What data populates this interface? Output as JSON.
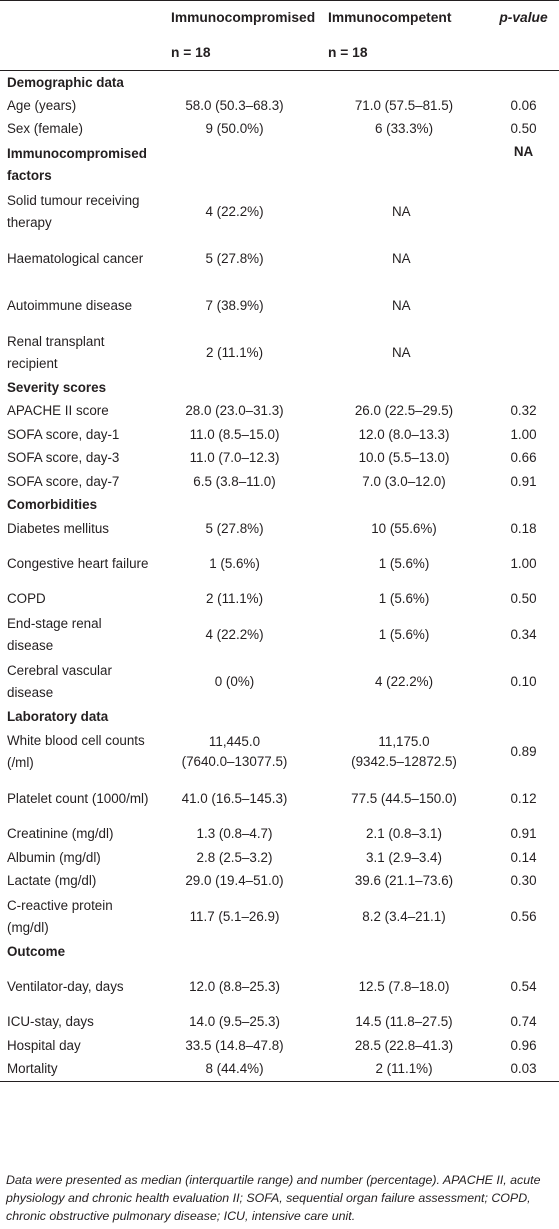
{
  "header": {
    "group1": "Immunocompromised",
    "group1_n": "n = 18",
    "group2": "Immunocompetent",
    "group2_n": "n = 18",
    "pvalue": "p-value"
  },
  "rows": [
    {
      "type": "section",
      "label": "Demographic data"
    },
    {
      "label": "Age (years)",
      "v1": "58.0 (50.3–68.3)",
      "v2": "71.0 (57.5–81.5)",
      "p": "0.06"
    },
    {
      "label": "Sex (female)",
      "v1": "9 (50.0%)",
      "v2": "6 (33.3%)",
      "p": "0.50"
    },
    {
      "type": "section2",
      "label": "Immunocompromised factors",
      "p": "NA"
    },
    {
      "label": "Solid tumour receiving therapy",
      "v1": "4 (22.2%)",
      "v2": "NA",
      "p": ""
    },
    {
      "label": "Haematological cancer",
      "v1": "5 (27.8%)",
      "v2": "NA",
      "p": ""
    },
    {
      "label": "Autoimmune disease",
      "v1": "7 (38.9%)",
      "v2": "NA",
      "p": ""
    },
    {
      "label": "Renal transplant recipient",
      "v1": "2 (11.1%)",
      "v2": "NA",
      "p": ""
    },
    {
      "type": "section",
      "label": "Severity scores"
    },
    {
      "label": "APACHE II score",
      "v1": "28.0 (23.0–31.3)",
      "v2": "26.0 (22.5–29.5)",
      "p": "0.32"
    },
    {
      "label": "SOFA score, day-1",
      "v1": "11.0 (8.5–15.0)",
      "v2": "12.0 (8.0–13.3)",
      "p": "1.00"
    },
    {
      "label": "SOFA score, day-3",
      "v1": "11.0 (7.0–12.3)",
      "v2": "10.0 (5.5–13.0)",
      "p": "0.66"
    },
    {
      "label": "SOFA score, day-7",
      "v1": "6.5 (3.8–11.0)",
      "v2": "7.0 (3.0–12.0)",
      "p": "0.91"
    },
    {
      "type": "section",
      "label": "Comorbidities"
    },
    {
      "label": "Diabetes mellitus",
      "v1": "5 (27.8%)",
      "v2": "10 (55.6%)",
      "p": "0.18"
    },
    {
      "label": "Congestive heart failure",
      "v1": "1 (5.6%)",
      "v2": "1 (5.6%)",
      "p": "1.00"
    },
    {
      "label": "COPD",
      "v1": "2 (11.1%)",
      "v2": "1 (5.6%)",
      "p": "0.50"
    },
    {
      "label": "End-stage renal disease",
      "v1": "4 (22.2%)",
      "v2": "1 (5.6%)",
      "p": "0.34"
    },
    {
      "label": "Cerebral vascular disease",
      "v1": "0 (0%)",
      "v2": "4 (22.2%)",
      "p": "0.10"
    },
    {
      "type": "section",
      "label": "Laboratory data"
    },
    {
      "label": "White blood cell counts (/ml)",
      "v1": "11,445.0",
      "v1b": "(7640.0–13077.5)",
      "v2": "11,175.0",
      "v2b": "(9342.5–12872.5)",
      "p": "0.89"
    },
    {
      "label": "Platelet count (1000/ml)",
      "v1": "41.0 (16.5–145.3)",
      "v2": "77.5 (44.5–150.0)",
      "p": "0.12"
    },
    {
      "label": "Creatinine (mg/dl)",
      "v1": "1.3 (0.8–4.7)",
      "v2": "2.1 (0.8–3.1)",
      "p": "0.91"
    },
    {
      "label": "Albumin (mg/dl)",
      "v1": "2.8 (2.5–3.2)",
      "v2": "3.1 (2.9–3.4)",
      "p": "0.14"
    },
    {
      "label": "Lactate (mg/dl)",
      "v1": "29.0 (19.4–51.0)",
      "v2": "39.6 (21.1–73.6)",
      "p": "0.30"
    },
    {
      "label": "C-reactive protein (mg/dl)",
      "v1": "11.7 (5.1–26.9)",
      "v2": "8.2 (3.4–21.1)",
      "p": "0.56"
    },
    {
      "type": "section",
      "label": "Outcome"
    },
    {
      "label": "Ventilator-day, days",
      "v1": "12.0 (8.8–25.3)",
      "v2": "12.5 (7.8–18.0)",
      "p": "0.54"
    },
    {
      "label": "ICU-stay, days",
      "v1": "14.0 (9.5–25.3)",
      "v2": "14.5 (11.8–27.5)",
      "p": "0.74"
    },
    {
      "label": "Hospital day",
      "v1": "33.5 (14.8–47.8)",
      "v2": "28.5 (22.8–41.3)",
      "p": "0.96"
    },
    {
      "label": "Mortality",
      "v1": "8 (44.4%)",
      "v2": "2 (11.1%)",
      "p": "0.03"
    }
  ],
  "footnote": "Data were presented as median (interquartile range) and number (percentage). APACHE II, acute physiology and chronic health evaluation II; SOFA, sequential organ failure assessment; COPD, chronic obstructive pulmonary disease; ICU, intensive care unit."
}
